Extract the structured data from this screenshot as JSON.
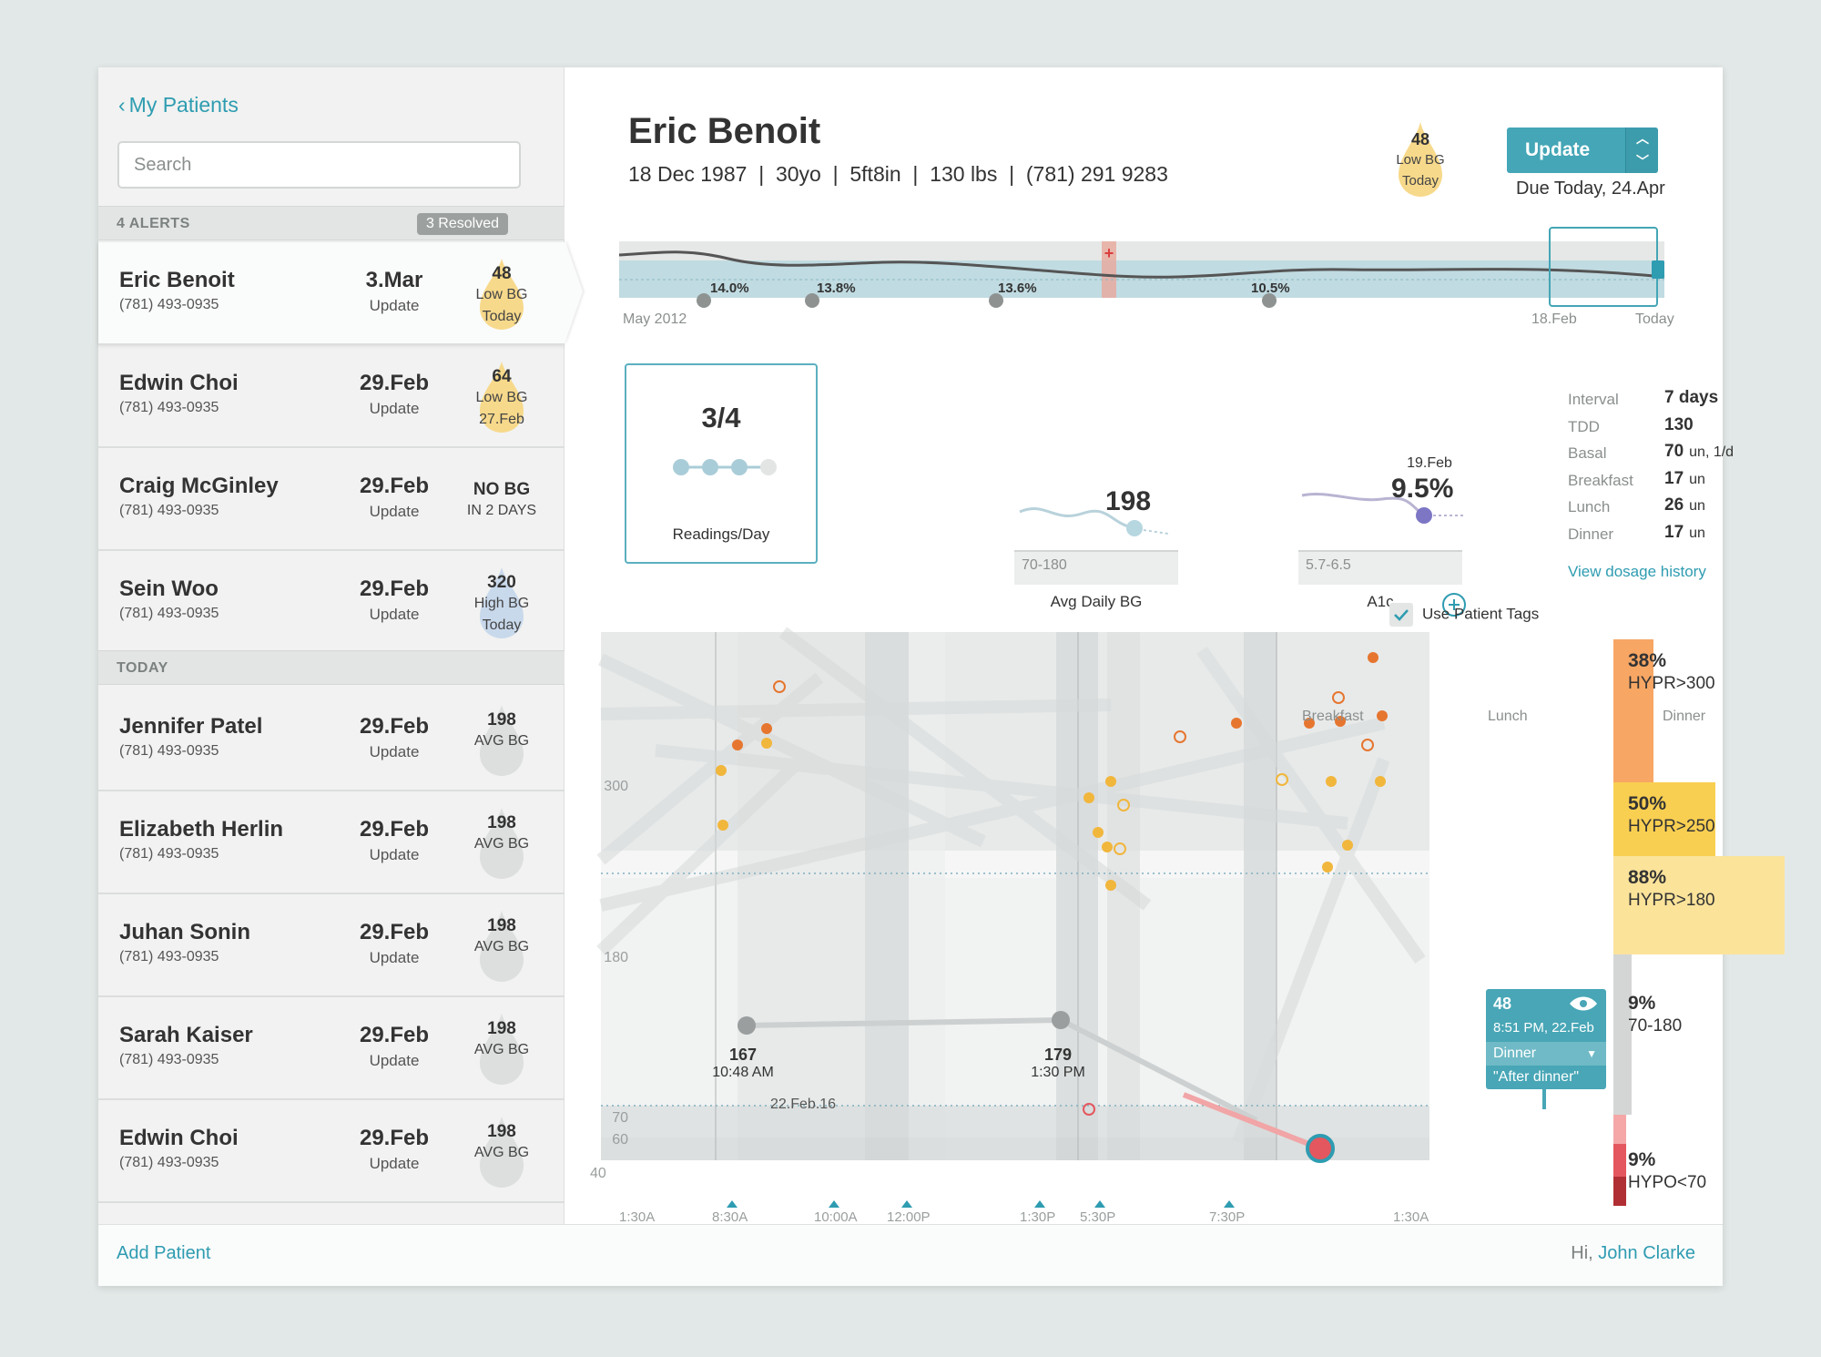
{
  "sidebar": {
    "back_label": "My Patients",
    "search_placeholder": "Search",
    "alerts_header": "4 ALERTS",
    "resolved_label": "3 Resolved",
    "today_header": "TODAY",
    "patients": [
      {
        "name": "Eric Benoit",
        "phone": "(781) 493-0935",
        "date": "3.Mar",
        "status": "Update",
        "badge_value": "48",
        "badge_line1": "Low BG",
        "badge_line2": "Today",
        "drop_color": "#f7d98b"
      },
      {
        "name": "Edwin Choi",
        "phone": "(781) 493-0935",
        "date": "29.Feb",
        "status": "Update",
        "badge_value": "64",
        "badge_line1": "Low BG",
        "badge_line2": "27.Feb",
        "drop_color": "#f7d98b"
      },
      {
        "name": "Craig McGinley",
        "phone": "(781) 493-0935",
        "date": "29.Feb",
        "status": "Update",
        "badge_value": "NO BG",
        "badge_line1": "IN 2 DAYS",
        "badge_line2": "",
        "drop_color": ""
      },
      {
        "name": "Sein Woo",
        "phone": "(781) 493-0935",
        "date": "29.Feb",
        "status": "Update",
        "badge_value": "320",
        "badge_line1": "High BG",
        "badge_line2": "Today",
        "drop_color": "#c9d9ec"
      },
      {
        "name": "Jennifer Patel",
        "phone": "(781) 493-0935",
        "date": "29.Feb",
        "status": "Update",
        "badge_value": "198",
        "badge_line1": "AVG BG",
        "badge_line2": "",
        "drop_color": "#dcdfde"
      },
      {
        "name": "Elizabeth Herlin",
        "phone": "(781) 493-0935",
        "date": "29.Feb",
        "status": "Update",
        "badge_value": "198",
        "badge_line1": "AVG BG",
        "badge_line2": "",
        "drop_color": "#dcdfde"
      },
      {
        "name": "Juhan Sonin",
        "phone": "(781) 493-0935",
        "date": "29.Feb",
        "status": "Update",
        "badge_value": "198",
        "badge_line1": "AVG BG",
        "badge_line2": "",
        "drop_color": "#dcdfde"
      },
      {
        "name": "Sarah Kaiser",
        "phone": "(781) 493-0935",
        "date": "29.Feb",
        "status": "Update",
        "badge_value": "198",
        "badge_line1": "AVG BG",
        "badge_line2": "",
        "drop_color": "#dcdfde"
      },
      {
        "name": "Edwin Choi",
        "phone": "(781) 493-0935",
        "date": "29.Feb",
        "status": "Update",
        "badge_value": "198",
        "badge_line1": "AVG BG",
        "badge_line2": "",
        "drop_color": "#dcdfde"
      }
    ]
  },
  "footer": {
    "add_patient": "Add Patient",
    "greeting": "Hi,",
    "user_first": "John",
    "user_last": "Clarke"
  },
  "patient": {
    "name": "Eric Benoit",
    "info": "18 Dec 1987  |  30yo  |  5ft8in  |  130 lbs  |  (781) 291 9283",
    "badge_value": "48",
    "badge_line1": "Low BG",
    "badge_line2": "Today",
    "update_label": "Update",
    "due_label": "Due Today, 24.Apr"
  },
  "timeline": {
    "start_label": "May 2012",
    "window_label": "18.Feb",
    "end_label": "Today",
    "a1c_markers": [
      "14.0%",
      "13.8%",
      "13.6%",
      "10.5%"
    ]
  },
  "stats": {
    "readings_value": "3/4",
    "readings_label": "Readings/Day",
    "readings_filled": 3,
    "readings_total": 4,
    "avg_value": "198",
    "avg_range": "70-180",
    "avg_label": "Avg Daily BG",
    "a1c_date": "19.Feb",
    "a1c_value": "9.5%",
    "a1c_range": "5.7-6.5",
    "a1c_label": "A1c"
  },
  "dosage": {
    "rows": [
      {
        "key": "Interval",
        "value": "7 days",
        "unit": ""
      },
      {
        "key": "TDD",
        "value": "130",
        "unit": ""
      },
      {
        "key": "Basal",
        "value": "70",
        "unit": "un, 1/d"
      },
      {
        "key": "Breakfast",
        "value": "17",
        "unit": "un"
      },
      {
        "key": "Lunch",
        "value": "26",
        "unit": "un"
      },
      {
        "key": "Dinner",
        "value": "17",
        "unit": "un"
      }
    ],
    "history_link": "View dosage history"
  },
  "tags_label": "Use Patient Tags",
  "chart_data": {
    "type": "scatter",
    "meal_labels": [
      "Breakfast",
      "Lunch",
      "Dinner"
    ],
    "y_ticks": [
      "300",
      "180",
      "70",
      "60",
      "40"
    ],
    "x_ticks": [
      "1:30A",
      "8:30A",
      "10:00A",
      "12:00P",
      "1:30P",
      "5:30P",
      "7:30P",
      "1:30A"
    ],
    "summary": [
      {
        "pct": "38%",
        "label": "HYPR>300",
        "color": "#f7a664",
        "fraction": 0.38
      },
      {
        "pct": "50%",
        "label": "HYPR>250",
        "color": "#f9cf52",
        "fraction": 0.5
      },
      {
        "pct": "88%",
        "label": "HYPR>180",
        "color": "#fbe39a",
        "fraction": 0.88
      },
      {
        "pct": "9%",
        "label": "70-180",
        "color": "#d4d6d5",
        "fraction": 0.09
      },
      {
        "pct": "9%",
        "label": "HYPO<70",
        "color": "#e4575e",
        "fraction": 0.09
      }
    ],
    "highlight_points": [
      {
        "value": "167",
        "time": "10:48 AM",
        "date": "22.Feb.16"
      },
      {
        "value": "179",
        "time": "1:30 PM",
        "date": ""
      }
    ],
    "tooltip": {
      "value": "48",
      "datetime": "8:51 PM, 22.Feb",
      "tag": "Dinner",
      "note": "\"After dinner\""
    }
  },
  "colors": {
    "accent": "#2e9cb1",
    "high": "#e6762f",
    "mid": "#f1b63c",
    "low": "#e4575e"
  }
}
